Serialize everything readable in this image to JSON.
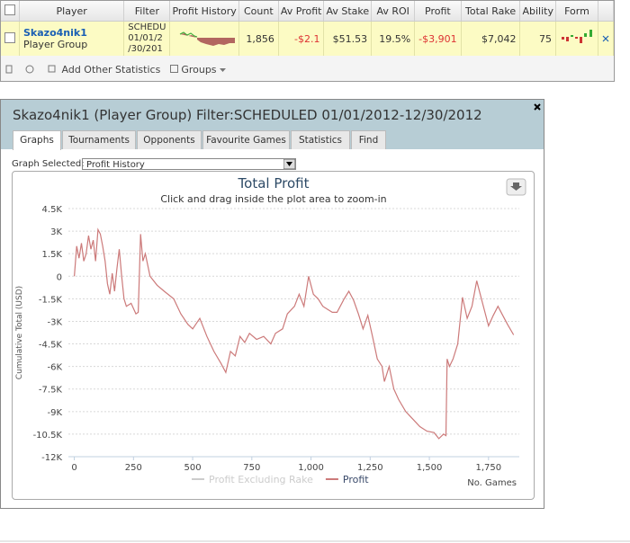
{
  "table": {
    "headers": [
      "Player",
      "Filter",
      "Profit History",
      "Count",
      "Av Profit",
      "Av Stake",
      "Av ROI",
      "Profit",
      "Total Rake",
      "Ability",
      "Form"
    ],
    "row": {
      "player": "Skazo4nik1",
      "group": "Player Group",
      "filter": [
        "SCHEDU",
        "01/01/2",
        "/30/201"
      ],
      "cells": [
        "1,856",
        "-$2.1",
        "$51.53",
        "19.5%",
        "-$3,901",
        "$7,042",
        "75"
      ]
    }
  },
  "toolbar": [
    "Add Other Statistics",
    "Groups"
  ],
  "dialog": {
    "title": "Skazo4nik1 (Player Group) Filter:SCHEDULED 01/01/2012-12/30/2012",
    "tabs": [
      "Graphs",
      "Tournaments",
      "Opponents",
      "Favourite Games",
      "Statistics",
      "Find"
    ],
    "graph_label": "Graph Selected:",
    "graph_selected": "Profit History"
  },
  "chart_data": {
    "type": "line",
    "title": "Total Profit",
    "subtitle": "Click and drag inside the plot area to zoom-in",
    "ylabel": "Cumulative Total (USD)",
    "xlabel": "No. Games",
    "x": [
      0,
      10,
      20,
      30,
      40,
      50,
      60,
      70,
      80,
      90,
      100,
      110,
      120,
      130,
      140,
      150,
      160,
      170,
      180,
      190,
      200,
      210,
      220,
      240,
      260,
      270,
      280,
      290,
      300,
      320,
      350,
      380,
      420,
      450,
      480,
      500,
      530,
      560,
      590,
      620,
      640,
      660,
      680,
      700,
      720,
      740,
      770,
      800,
      830,
      850,
      880,
      900,
      930,
      950,
      970,
      990,
      1010,
      1030,
      1050,
      1070,
      1090,
      1110,
      1140,
      1160,
      1180,
      1200,
      1220,
      1240,
      1260,
      1280,
      1300,
      1310,
      1330,
      1350,
      1370,
      1400,
      1430,
      1460,
      1490,
      1520,
      1540,
      1560,
      1570,
      1575,
      1585,
      1600,
      1620,
      1640,
      1660,
      1680,
      1700,
      1720,
      1750,
      1770,
      1790,
      1810,
      1830,
      1856
    ],
    "series": [
      {
        "name": "Profit Excluding Rake",
        "color": "#cccccc",
        "visible": false
      },
      {
        "name": "Profit",
        "color": "#cc7a7a",
        "visible": true,
        "values": [
          0,
          2000,
          1200,
          2200,
          1000,
          1500,
          2700,
          1800,
          2400,
          1000,
          3100,
          2800,
          2000,
          1000,
          -500,
          -1200,
          200,
          -1000,
          500,
          1800,
          0,
          -1500,
          -2000,
          -1800,
          -2500,
          -2400,
          2800,
          1000,
          1500,
          0,
          -600,
          -1000,
          -1500,
          -2500,
          -3200,
          -3500,
          -2800,
          -4000,
          -5000,
          -5800,
          -6400,
          -5000,
          -5300,
          -4000,
          -4400,
          -3800,
          -4200,
          -4000,
          -4500,
          -3800,
          -3500,
          -2500,
          -2000,
          -1200,
          -2000,
          0,
          -1200,
          -1500,
          -2000,
          -2200,
          -2400,
          -2400,
          -1500,
          -1000,
          -1600,
          -2500,
          -3500,
          -2600,
          -4000,
          -5500,
          -6000,
          -7000,
          -6000,
          -7500,
          -8200,
          -9000,
          -9500,
          -10000,
          -10300,
          -10400,
          -10800,
          -10500,
          -10600,
          -5500,
          -6000,
          -5500,
          -4500,
          -1400,
          -2800,
          -2000,
          -300,
          -1500,
          -3300,
          -2600,
          -2000,
          -2600,
          -3200,
          -3900
        ]
      }
    ],
    "xlim": [
      -25,
      1880
    ],
    "ylim": [
      -12000,
      4500
    ],
    "xticks": [
      0,
      250,
      500,
      750,
      {
        "value": 1000,
        "label": "1,000"
      },
      {
        "value": 1250,
        "label": "1,250"
      },
      {
        "value": 1500,
        "label": "1,500"
      },
      {
        "value": 1750,
        "label": "1,750"
      }
    ],
    "yticks": [
      {
        "value": 4500,
        "label": "4.5K"
      },
      {
        "value": 3000,
        "label": "3K"
      },
      {
        "value": 1500,
        "label": "1.5K"
      },
      0,
      {
        "value": -1500,
        "label": "-1.5K"
      },
      {
        "value": -3000,
        "label": "-3K"
      },
      {
        "value": -4500,
        "label": "-4.5K"
      },
      {
        "value": -6000,
        "label": "-6K"
      },
      {
        "value": -7500,
        "label": "-7.5K"
      },
      {
        "value": -9000,
        "label": "-9K"
      },
      {
        "value": -10500,
        "label": "-10.5K"
      },
      {
        "value": -12000,
        "label": "-12K"
      }
    ],
    "grid": true
  }
}
